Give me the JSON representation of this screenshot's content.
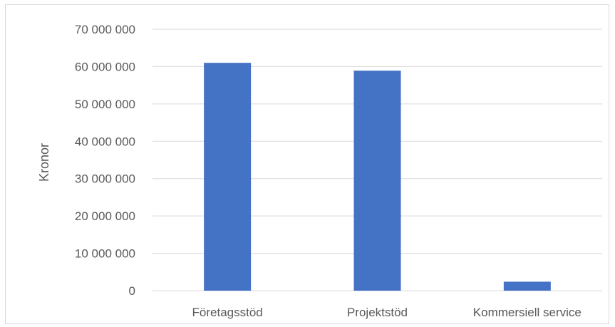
{
  "chart_data": {
    "type": "bar",
    "categories": [
      "Företagsstöd",
      "Projektstöd",
      "Kommersiell service"
    ],
    "values": [
      61000000,
      58900000,
      2400000
    ],
    "title": "",
    "xlabel": "",
    "ylabel": "Kronor",
    "ylim": [
      0,
      70000000
    ],
    "yticks": [
      "0",
      "10 000 000",
      "20 000 000",
      "30 000 000",
      "40 000 000",
      "50 000 000",
      "60 000 000",
      "70 000 000"
    ],
    "grid": true,
    "legend": "none",
    "bar_color": "#4472c4",
    "grid_color": "#d9d9d9",
    "text_color": "#595959"
  }
}
